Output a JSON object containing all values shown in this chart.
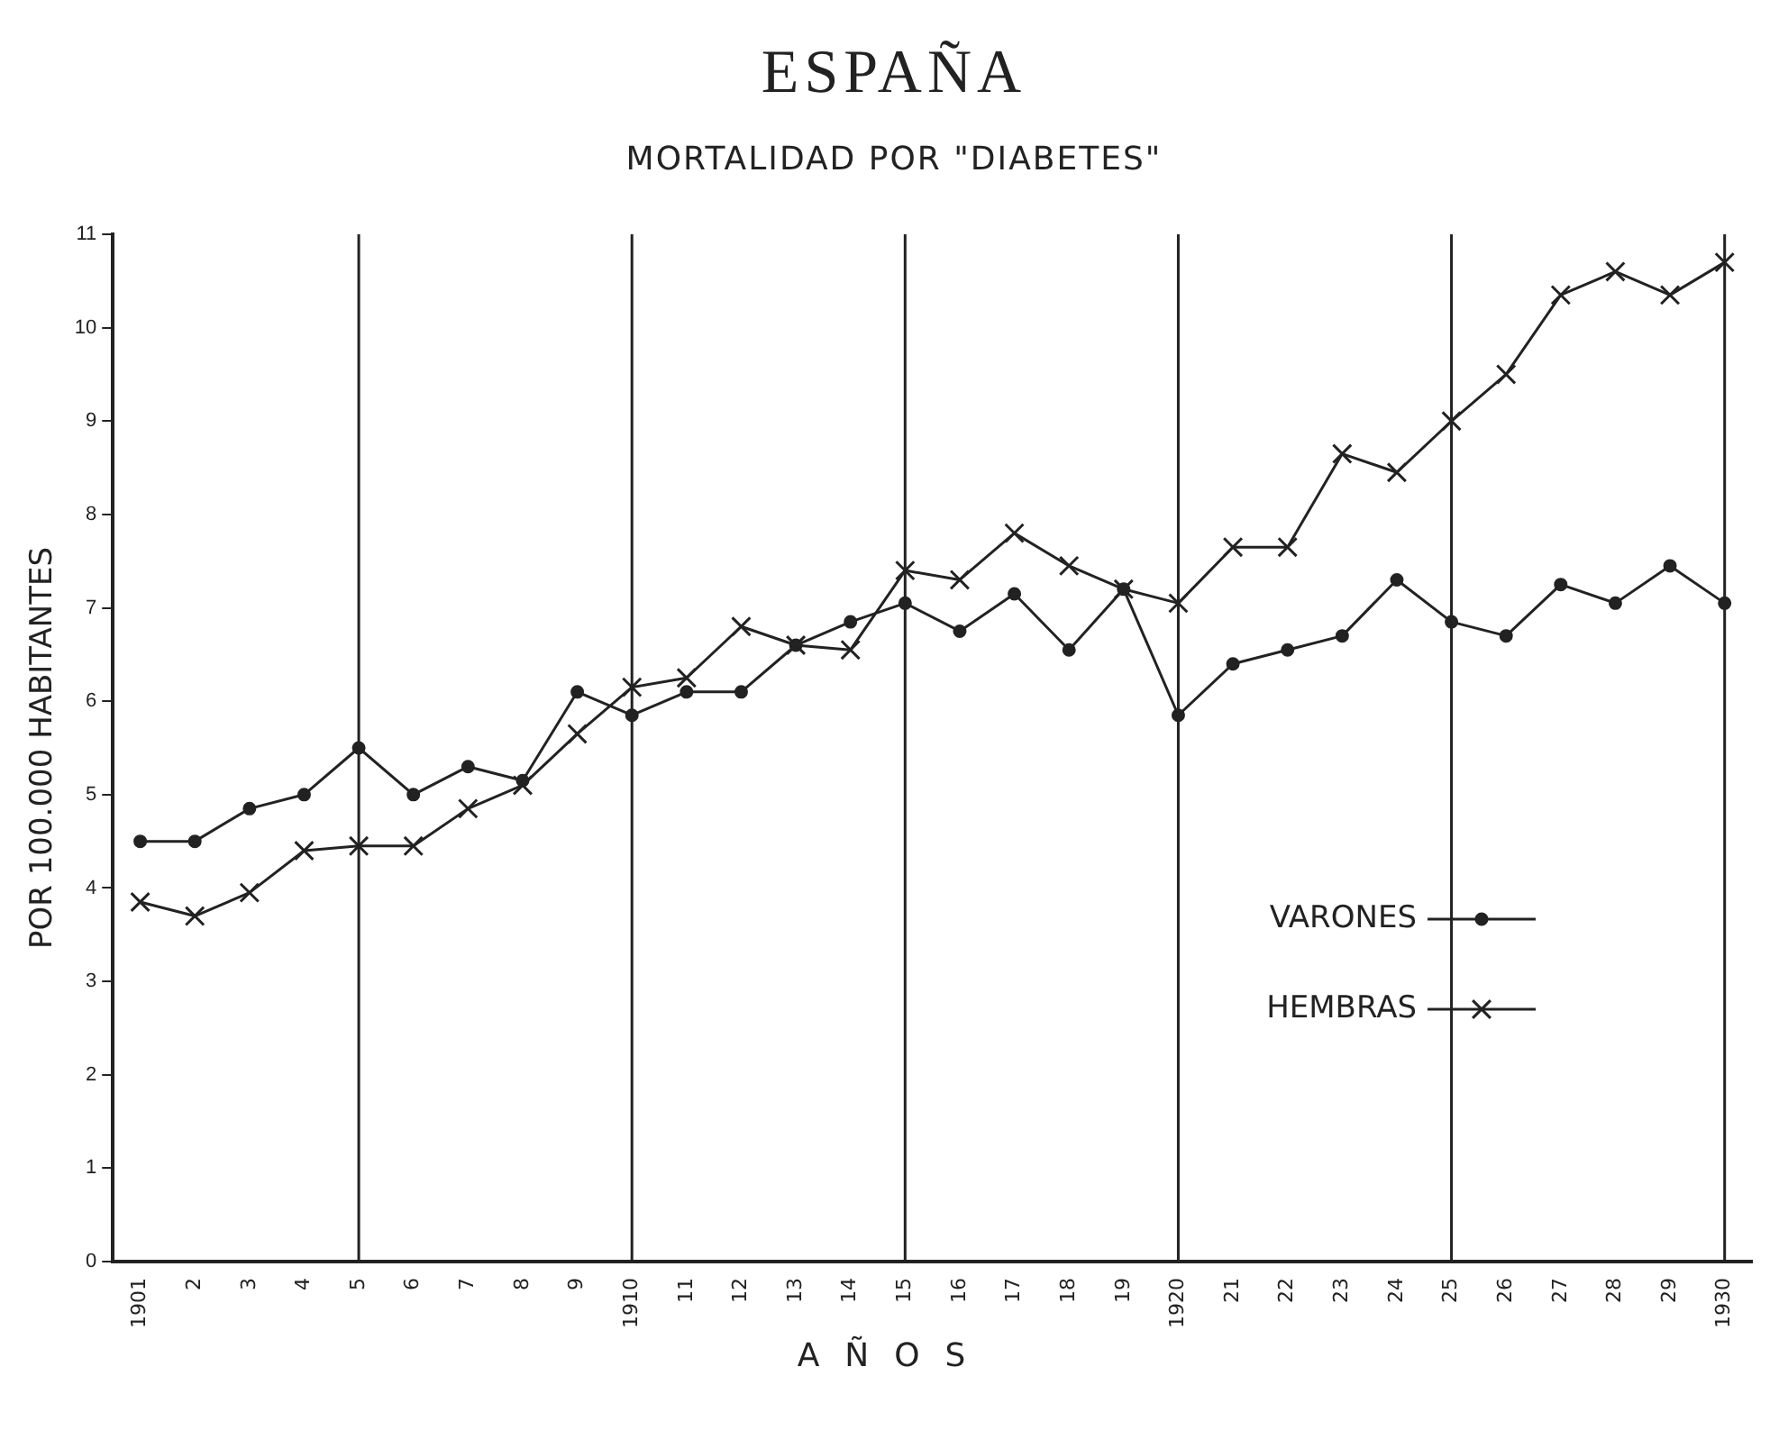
{
  "chart_data": {
    "type": "line",
    "title": "ESPAÑA",
    "subtitle": "MORTALIDAD POR \"DIABETES\"",
    "xlabel": "AÑOS",
    "ylabel": "POR 100.000 HABITANTES",
    "categories": [
      "1901",
      "2",
      "3",
      "4",
      "5",
      "6",
      "7",
      "8",
      "9",
      "1910",
      "11",
      "12",
      "13",
      "14",
      "15",
      "16",
      "17",
      "18",
      "19",
      "1920",
      "21",
      "22",
      "23",
      "24",
      "25",
      "26",
      "27",
      "28",
      "29",
      "1930"
    ],
    "series": [
      {
        "name": "VARONES",
        "color": "#222222",
        "marker": "circle",
        "values": [
          4.5,
          4.5,
          4.85,
          5.0,
          5.5,
          5.0,
          5.3,
          5.15,
          6.1,
          5.85,
          6.1,
          6.1,
          6.6,
          6.85,
          7.05,
          6.75,
          7.15,
          6.55,
          7.2,
          5.85,
          6.4,
          6.55,
          6.7,
          7.3,
          6.85,
          6.7,
          7.25,
          7.05,
          7.45,
          7.05
        ]
      },
      {
        "name": "HEMBRAS",
        "color": "#222222",
        "marker": "cross",
        "values": [
          3.85,
          3.7,
          3.95,
          4.4,
          4.45,
          4.45,
          4.85,
          5.1,
          5.65,
          6.15,
          6.25,
          6.8,
          6.6,
          6.55,
          7.4,
          7.3,
          7.8,
          7.45,
          7.2,
          7.05,
          7.65,
          7.65,
          8.65,
          8.45,
          9.0,
          9.5,
          10.35,
          10.6,
          10.35,
          10.7
        ]
      }
    ],
    "ylim": [
      0,
      11
    ],
    "yticks": [
      0,
      1,
      2,
      3,
      4,
      5,
      6,
      7,
      8,
      9,
      10,
      11
    ],
    "ref_lines": [
      {
        "axis": "x",
        "value": "5"
      },
      {
        "axis": "x",
        "value": "1910"
      },
      {
        "axis": "x",
        "value": "15"
      },
      {
        "axis": "x",
        "value": "1920"
      },
      {
        "axis": "x",
        "value": "25"
      },
      {
        "axis": "x",
        "value": "1930"
      }
    ],
    "grid": false,
    "legend": "bottom right",
    "line_style": "solid"
  }
}
